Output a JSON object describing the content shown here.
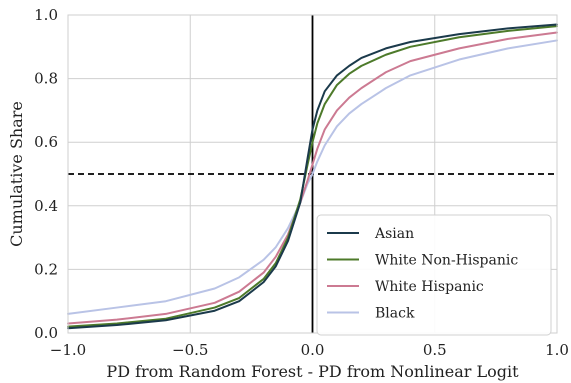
{
  "chart_data": {
    "type": "line",
    "xlabel": "PD from Random Forest - PD from Nonlinear Logit",
    "ylabel": "Cumulative Share",
    "xlim": [
      -1.0,
      1.0
    ],
    "ylim": [
      0.0,
      1.0
    ],
    "x_ticks": [
      -1.0,
      -0.5,
      0.0,
      0.5,
      1.0
    ],
    "x_tick_labels": [
      "−1.0",
      "−0.5",
      "0.0",
      "0.5",
      "1.0"
    ],
    "y_ticks": [
      0.0,
      0.2,
      0.4,
      0.6,
      0.8,
      1.0
    ],
    "y_tick_labels": [
      "0.0",
      "0.2",
      "0.4",
      "0.6",
      "0.8",
      "1.0"
    ],
    "grid": true,
    "legend_position": "lower-right",
    "reference_lines": [
      {
        "orientation": "vertical",
        "value": 0.0,
        "style": "solid",
        "color": "#000000"
      },
      {
        "orientation": "horizontal",
        "value": 0.5,
        "style": "dashed",
        "color": "#000000"
      }
    ],
    "series": [
      {
        "name": "Asian",
        "color": "#1b3a4b",
        "x": [
          -1.0,
          -0.8,
          -0.6,
          -0.4,
          -0.3,
          -0.2,
          -0.15,
          -0.1,
          -0.05,
          -0.02,
          0.0,
          0.02,
          0.05,
          0.1,
          0.15,
          0.2,
          0.3,
          0.4,
          0.6,
          0.8,
          1.0
        ],
        "y": [
          0.015,
          0.025,
          0.04,
          0.07,
          0.1,
          0.16,
          0.21,
          0.29,
          0.41,
          0.55,
          0.64,
          0.7,
          0.76,
          0.81,
          0.84,
          0.865,
          0.895,
          0.915,
          0.94,
          0.958,
          0.97
        ]
      },
      {
        "name": "White Non-Hispanic",
        "color": "#4d7a2a",
        "x": [
          -1.0,
          -0.8,
          -0.6,
          -0.4,
          -0.3,
          -0.2,
          -0.15,
          -0.1,
          -0.05,
          -0.02,
          0.0,
          0.02,
          0.05,
          0.1,
          0.15,
          0.2,
          0.3,
          0.4,
          0.6,
          0.8,
          1.0
        ],
        "y": [
          0.02,
          0.03,
          0.045,
          0.08,
          0.11,
          0.17,
          0.22,
          0.3,
          0.42,
          0.53,
          0.6,
          0.66,
          0.72,
          0.78,
          0.815,
          0.84,
          0.875,
          0.9,
          0.93,
          0.95,
          0.965
        ]
      },
      {
        "name": "White Hispanic",
        "color": "#cc7a92",
        "x": [
          -1.0,
          -0.8,
          -0.6,
          -0.4,
          -0.3,
          -0.2,
          -0.15,
          -0.1,
          -0.05,
          -0.02,
          0.0,
          0.02,
          0.05,
          0.1,
          0.15,
          0.2,
          0.3,
          0.4,
          0.6,
          0.8,
          1.0
        ],
        "y": [
          0.03,
          0.042,
          0.06,
          0.095,
          0.13,
          0.19,
          0.24,
          0.31,
          0.41,
          0.48,
          0.53,
          0.58,
          0.64,
          0.7,
          0.74,
          0.77,
          0.82,
          0.855,
          0.895,
          0.925,
          0.945
        ]
      },
      {
        "name": "Black",
        "color": "#b9c3e6",
        "x": [
          -1.0,
          -0.8,
          -0.6,
          -0.4,
          -0.3,
          -0.2,
          -0.15,
          -0.1,
          -0.05,
          -0.02,
          0.0,
          0.02,
          0.05,
          0.1,
          0.15,
          0.2,
          0.3,
          0.4,
          0.6,
          0.8,
          1.0
        ],
        "y": [
          0.06,
          0.08,
          0.1,
          0.14,
          0.175,
          0.23,
          0.27,
          0.33,
          0.41,
          0.47,
          0.5,
          0.54,
          0.59,
          0.65,
          0.69,
          0.72,
          0.77,
          0.81,
          0.86,
          0.895,
          0.92
        ]
      }
    ]
  }
}
